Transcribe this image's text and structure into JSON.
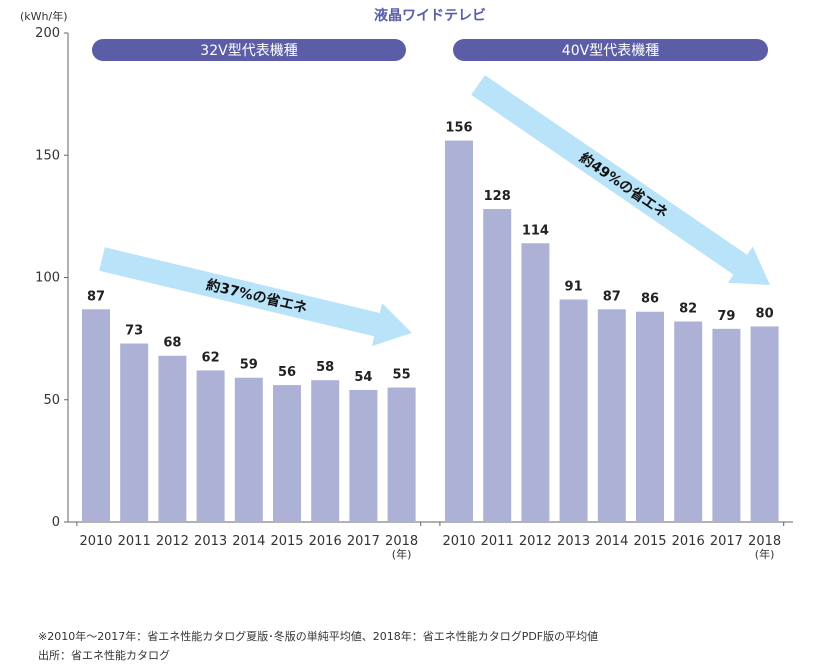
{
  "chart_data": {
    "type": "bar",
    "title": "液晶ワイドテレビ",
    "yunit": "(kWh/年)",
    "ylim": [
      0,
      200
    ],
    "yticks": [
      0,
      50,
      100,
      150,
      200
    ],
    "year_suffix": "(年)",
    "colors": {
      "bar": "#aeb1d6",
      "pill": "#5b5ea6",
      "arrow": "#b9e3f8",
      "title": "#5b5ea6"
    },
    "groups": [
      {
        "name": "32V型代表機種",
        "categories": [
          "2010",
          "2011",
          "2012",
          "2013",
          "2014",
          "2015",
          "2016",
          "2017",
          "2018"
        ],
        "values": [
          87,
          73,
          68,
          62,
          59,
          56,
          58,
          54,
          55
        ],
        "annotation": "約37%の省エネ"
      },
      {
        "name": "40V型代表機種",
        "categories": [
          "2010",
          "2011",
          "2012",
          "2013",
          "2014",
          "2015",
          "2016",
          "2017",
          "2018"
        ],
        "values": [
          156,
          128,
          114,
          91,
          87,
          86,
          82,
          79,
          80
        ],
        "annotation": "約49%の省エネ"
      }
    ]
  },
  "notes": {
    "line1": "※2010年〜2017年：省エネ性能カタログ夏版･冬版の単純平均値、2018年：省エネ性能カタログPDF版の平均値",
    "line2": "出所：省エネ性能カタログ"
  }
}
